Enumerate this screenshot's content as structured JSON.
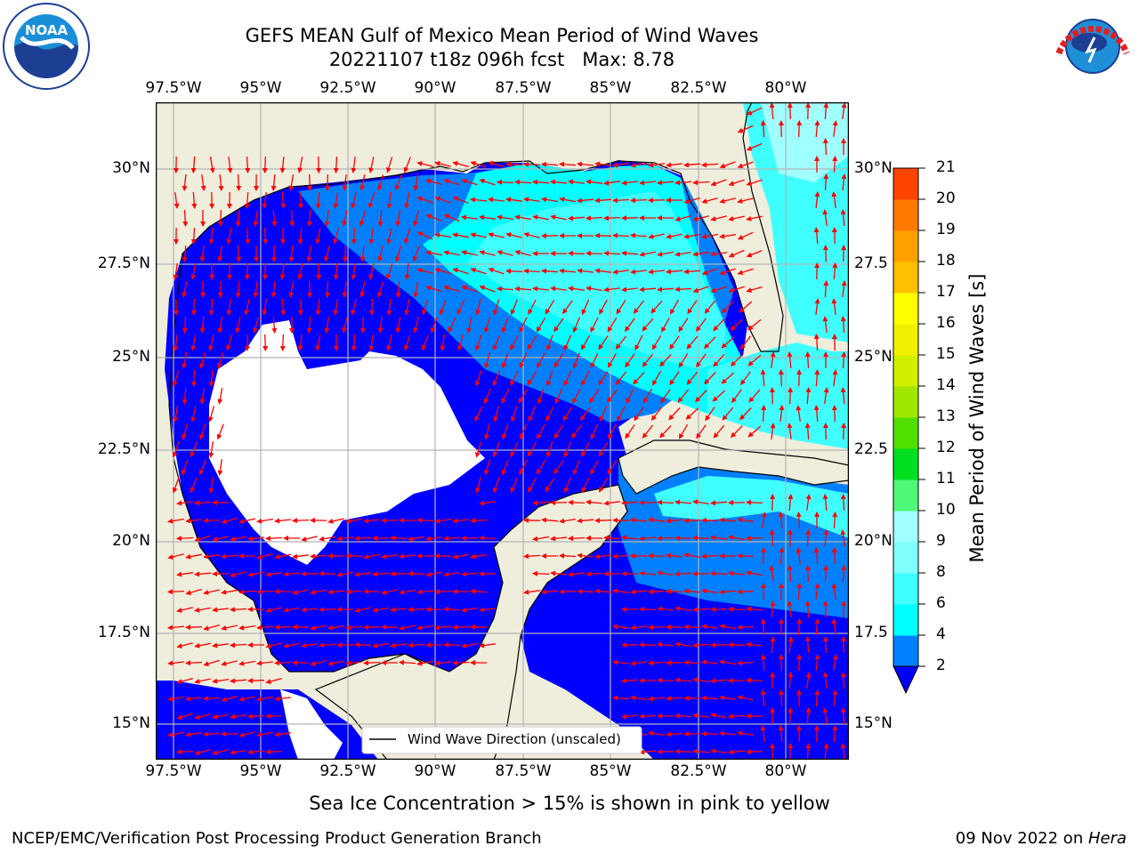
{
  "header": {
    "title_line1": "GEFS MEAN Gulf of Mexico Mean Period of Wind Waves",
    "title_line2": "20221107 t18z 096h fcst   Max: 8.78",
    "left_logo": "NOAA",
    "right_logo": "NATIONAL WEATHER SERVICE"
  },
  "map": {
    "lon_labels": [
      "97.5°W",
      "95°W",
      "92.5°W",
      "90°W",
      "87.5°W",
      "85°W",
      "82.5°W",
      "80°W"
    ],
    "lat_labels_left": [
      "30°N",
      "27.5°N",
      "25°N",
      "22.5°N",
      "20°N",
      "17.5°N",
      "15°N"
    ],
    "lat_labels_right": [
      "30°N",
      "27.5",
      "25°N",
      "22.5",
      "20°N",
      "17.5",
      "15°N"
    ],
    "legend_label": "Wind Wave Direction (unscaled)",
    "colors": {
      "land": "#efeddc",
      "grid": "#b4b4b4",
      "arrow": "#ff0000",
      "blue": "#0000ff",
      "medblue": "#0080ff",
      "cyan": "#00ffff",
      "lightcyan": "#40ffff",
      "palecyan": "#a0ffff"
    }
  },
  "colorbar": {
    "label": "Mean Period of Wind Waves [s]",
    "ticks": [
      "2",
      "4",
      "6",
      "8",
      "9",
      "10",
      "11",
      "12",
      "13",
      "14",
      "15",
      "16",
      "17",
      "18",
      "19",
      "20",
      "21"
    ],
    "colors": [
      "#0080ff",
      "#00ffff",
      "#40ffff",
      "#80ffff",
      "#a0ffff",
      "#50f878",
      "#00e020",
      "#50e000",
      "#a0e800",
      "#d0f000",
      "#f0f000",
      "#ffff00",
      "#ffc000",
      "#ffa000",
      "#ff7a00",
      "#ff4400",
      "#ff1a00",
      "#ff0000"
    ]
  },
  "footer": {
    "note": "Sea Ice Concentration > 15% is shown in pink to yellow",
    "credit": "NCEP/EMC/Verification Post Processing Product Generation Branch",
    "date": "09 Nov 2022 on ",
    "host": "Hera"
  }
}
